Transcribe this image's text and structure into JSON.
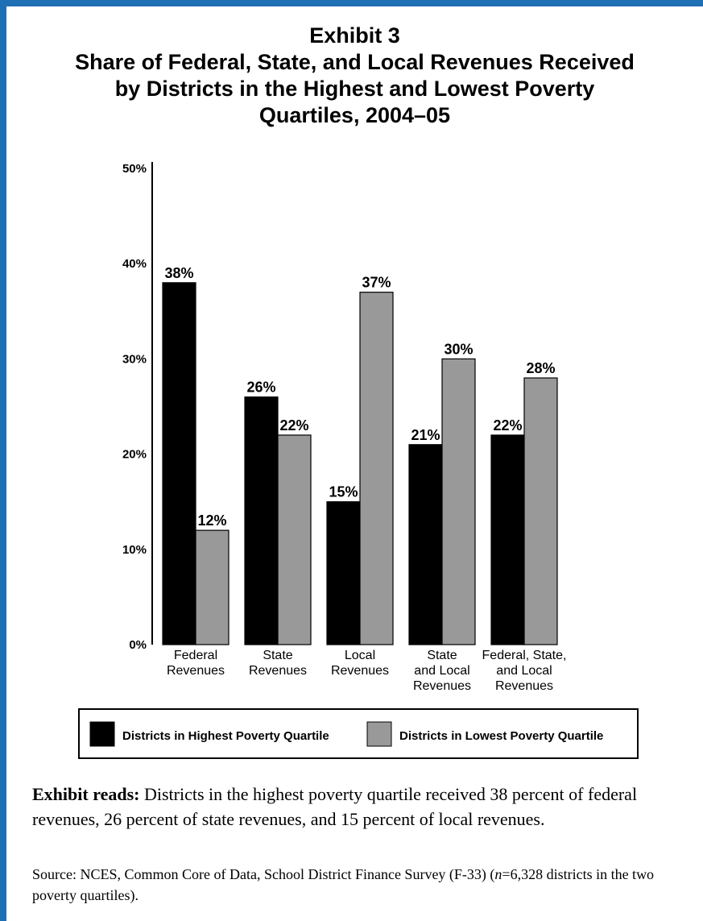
{
  "title_lines": [
    "Exhibit 3",
    "Share of Federal, State, and Local Revenues Received",
    "by Districts in the Highest and Lowest Poverty",
    "Quartiles, 2004–05"
  ],
  "colors": {
    "frame": "#1f6fb5",
    "highest": "#000000",
    "lowest": "#999999"
  },
  "chart_data": {
    "type": "bar",
    "title": "Exhibit 3 Share of Federal, State, and Local Revenues Received by Districts in the Highest and Lowest Poverty Quartiles, 2004–05",
    "categories": [
      [
        "Federal",
        "Revenues"
      ],
      [
        "State",
        "Revenues"
      ],
      [
        "Local",
        "Revenues"
      ],
      [
        "State",
        "and Local",
        "Revenues"
      ],
      [
        "Federal, State,",
        "and Local",
        "Revenues"
      ]
    ],
    "series": [
      {
        "name": "Districts in Highest Poverty Quartile",
        "values": [
          38,
          26,
          15,
          21,
          22
        ],
        "labels": [
          "38%",
          "26%",
          "15%",
          "21%",
          "22%"
        ]
      },
      {
        "name": "Districts in Lowest Poverty Quartile",
        "values": [
          12,
          22,
          37,
          30,
          28
        ],
        "labels": [
          "12%",
          "22%",
          "37%",
          "30%",
          "28%"
        ]
      }
    ],
    "yticks": [
      "0%",
      "10%",
      "20%",
      "30%",
      "40%",
      "50%"
    ],
    "ylim": [
      0,
      50
    ],
    "legend": "bottom",
    "grid": false
  },
  "notes": {
    "reads_label": "Exhibit reads:",
    "reads_text": " Districts in the highest poverty quartile received 38 percent of federal revenues, 26 percent of state revenues, and 15 percent of local revenues.",
    "source_prefix": "Source: NCES, Common Core of Data, School District Finance Survey (F-33) (",
    "source_n": "n",
    "source_suffix": "=6,328 districts in the two poverty quartiles)."
  }
}
